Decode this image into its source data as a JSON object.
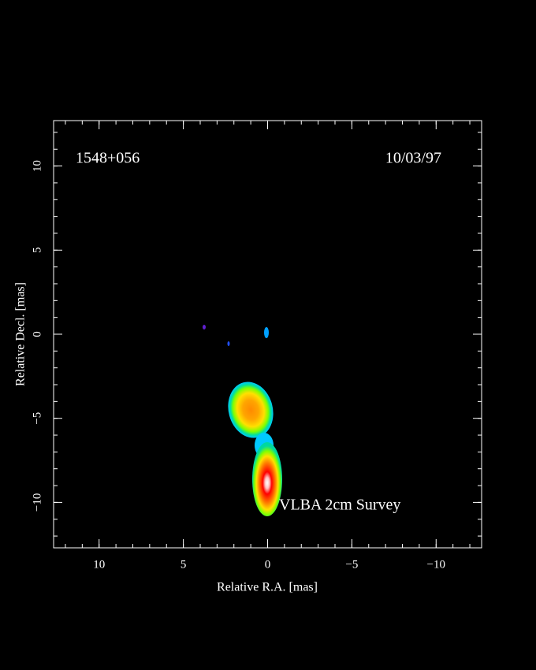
{
  "chart_data": {
    "type": "image",
    "title": "1548+056",
    "date": "10/03/97",
    "annotation": "VLBA 2cm Survey",
    "x_label": "Relative R.A. [mas]",
    "y_label": "Relative Decl. [mas]",
    "xlim": [
      12.7,
      -12.7
    ],
    "ylim": [
      -12.7,
      12.7
    ],
    "xticks": [
      10,
      5,
      0,
      {
        "value": -5,
        "label": "−5"
      },
      {
        "value": -10,
        "label": "−10"
      }
    ],
    "yticks": [
      {
        "value": -10,
        "label": "−10"
      },
      {
        "value": -5,
        "label": "−5"
      },
      0,
      5,
      10
    ],
    "xminorticks": [
      12,
      11,
      10,
      9,
      8,
      7,
      6,
      5,
      4,
      3,
      2,
      1,
      0,
      -1,
      -2,
      -3,
      -4,
      -5,
      -6,
      -7,
      -8,
      -9,
      -10,
      -11,
      -12
    ],
    "yminorticks": [
      -12,
      -11,
      -10,
      -9,
      -8,
      -7,
      -6,
      -5,
      -4,
      -3,
      -2,
      -1,
      0,
      1,
      2,
      3,
      4,
      5,
      6,
      7,
      8,
      9,
      10,
      11,
      12
    ]
  }
}
